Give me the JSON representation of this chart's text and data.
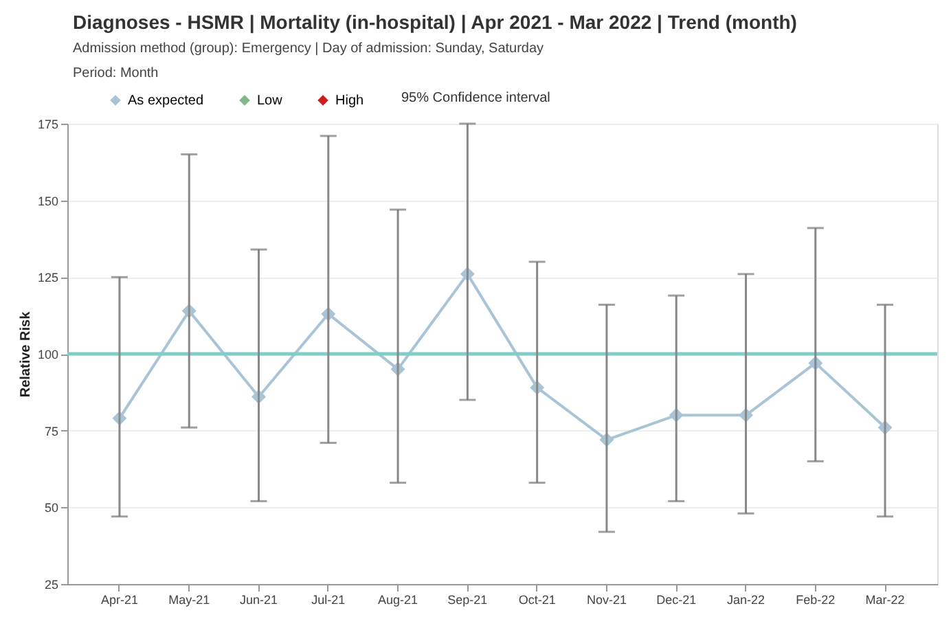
{
  "chart_data": {
    "type": "line",
    "title": "Diagnoses - HSMR | Mortality (in-hospital) | Apr 2021 - Mar 2022 | Trend (month)",
    "subtitle": "Admission method (group): Emergency | Day of admission: Sunday, Saturday",
    "annotations": [
      "Period: Month",
      "95% Confidence interval"
    ],
    "ylabel": "Relative Risk",
    "categories": [
      "Apr-21",
      "May-21",
      "Jun-21",
      "Jul-21",
      "Aug-21",
      "Sep-21",
      "Oct-21",
      "Nov-21",
      "Dec-21",
      "Jan-22",
      "Feb-22",
      "Mar-22"
    ],
    "series": [
      {
        "name": "As expected",
        "color": "#a9c4d6",
        "values": [
          79,
          114,
          86,
          113,
          95,
          126,
          89,
          72,
          80,
          80,
          97,
          76
        ],
        "errors": [
          [
            47,
            125
          ],
          [
            76,
            165
          ],
          [
            52,
            134
          ],
          [
            71,
            171
          ],
          [
            58,
            147
          ],
          [
            85,
            175
          ],
          [
            58,
            130
          ],
          [
            42,
            116
          ],
          [
            52,
            119
          ],
          [
            48,
            126
          ],
          [
            65,
            141
          ],
          [
            47,
            116
          ]
        ]
      },
      {
        "name": "Low",
        "color": "#7fb98a",
        "values": [
          null,
          null,
          null,
          null,
          null,
          null,
          null,
          null,
          null,
          null,
          null,
          null
        ]
      },
      {
        "name": "High",
        "color": "#d01c1c",
        "values": [
          null,
          null,
          null,
          null,
          null,
          null,
          null,
          null,
          null,
          null,
          null,
          null
        ]
      }
    ],
    "ylim": [
      25,
      175
    ],
    "yticks": [
      25,
      50,
      75,
      100,
      125,
      150,
      175
    ],
    "grid": "y",
    "marker": "diamond",
    "legend": "top left",
    "ref_lines": [
      {
        "axis": "y",
        "value": 100,
        "color": "#7fcfc8"
      }
    ]
  }
}
